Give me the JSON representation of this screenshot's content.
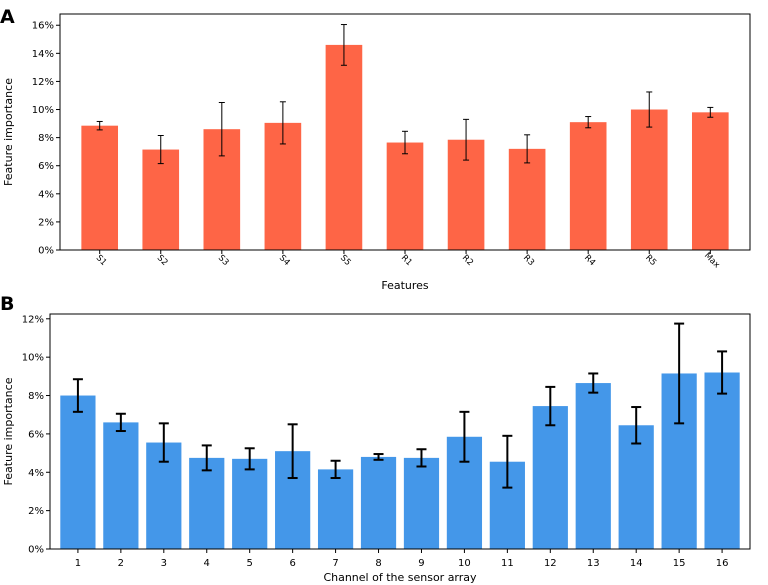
{
  "chart_data": [
    {
      "type": "bar",
      "panel_label": "A",
      "title": "",
      "xlabel": "Features",
      "ylabel": "Feature importance",
      "categories": [
        "S1",
        "S2",
        "S3",
        "S4",
        "S5",
        "R1",
        "R2",
        "R3",
        "R4",
        "R5",
        "Max"
      ],
      "values": [
        8.85,
        7.15,
        8.6,
        9.05,
        14.6,
        7.65,
        7.85,
        7.2,
        9.1,
        10.0,
        9.8
      ],
      "errors": [
        0.3,
        1.0,
        1.9,
        1.5,
        1.45,
        0.8,
        1.45,
        1.0,
        0.4,
        1.25,
        0.35
      ],
      "ylim": [
        0,
        16.8
      ],
      "yticks": [
        0,
        2,
        4,
        6,
        8,
        10,
        12,
        14,
        16
      ],
      "ytick_labels": [
        "0%",
        "2%",
        "4%",
        "6%",
        "8%",
        "10%",
        "12%",
        "14%",
        "16%"
      ],
      "color": "#fe6546",
      "grid": false,
      "xtick_rotation": -45
    },
    {
      "type": "bar",
      "panel_label": "B",
      "title": "",
      "xlabel": "Channel of the sensor array",
      "ylabel": "Feature importance",
      "categories": [
        "1",
        "2",
        "3",
        "4",
        "5",
        "6",
        "7",
        "8",
        "9",
        "10",
        "11",
        "12",
        "13",
        "14",
        "15",
        "16"
      ],
      "values": [
        8.0,
        6.6,
        5.55,
        4.75,
        4.7,
        5.1,
        4.15,
        4.8,
        4.75,
        5.85,
        4.55,
        7.45,
        8.65,
        6.45,
        9.15,
        9.2
      ],
      "errors": [
        0.85,
        0.45,
        1.0,
        0.65,
        0.55,
        1.4,
        0.45,
        0.15,
        0.45,
        1.3,
        1.35,
        1.0,
        0.5,
        0.95,
        2.6,
        1.1
      ],
      "ylim": [
        0,
        12.25
      ],
      "yticks": [
        0,
        2,
        4,
        6,
        8,
        10,
        12
      ],
      "ytick_labels": [
        "0%",
        "2%",
        "4%",
        "6%",
        "8%",
        "10%",
        "12%"
      ],
      "color": "#4497e9",
      "grid": false,
      "xtick_rotation": 0
    }
  ]
}
